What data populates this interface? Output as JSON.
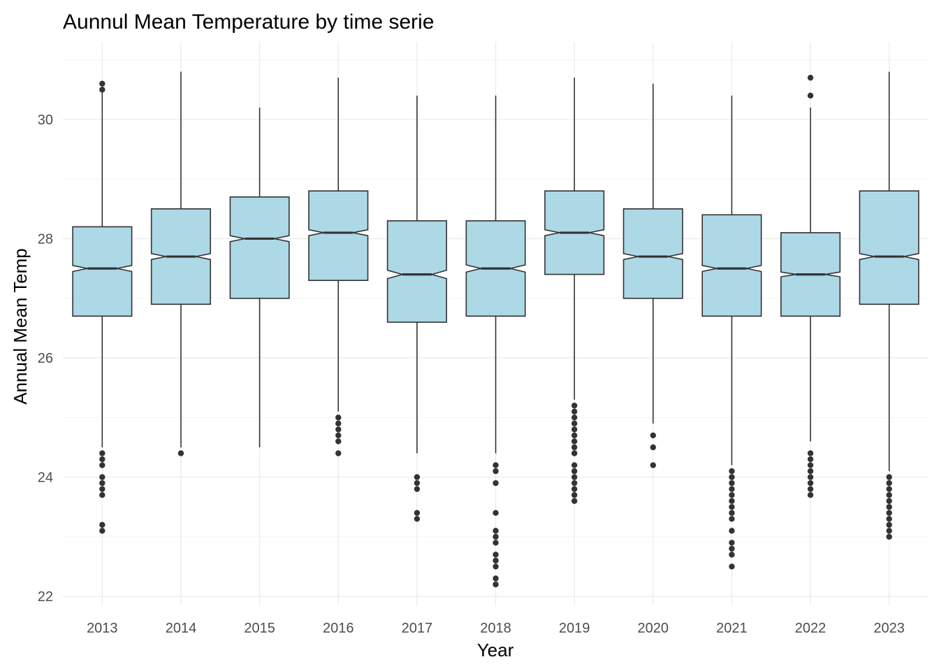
{
  "chart_data": {
    "type": "boxplot",
    "title": "Aunnul Mean Temperature by time serie",
    "xlabel": "Year",
    "ylabel": "Annual Mean Temp",
    "ylim": [
      21.85,
      31.3
    ],
    "y_ticks": [
      22,
      24,
      26,
      28,
      30
    ],
    "y_tick_labels": [
      "22",
      "24",
      "26",
      "28",
      "30"
    ],
    "grid": true,
    "notched": true,
    "box_fill": "#add8e6",
    "line_color": "#333333",
    "categories": [
      "2013",
      "2014",
      "2015",
      "2016",
      "2017",
      "2018",
      "2019",
      "2020",
      "2021",
      "2022",
      "2023"
    ],
    "boxes": [
      {
        "q1": 26.7,
        "median": 27.5,
        "q3": 28.2,
        "notch_low": 27.45,
        "notch_high": 27.55,
        "whisker_low": 24.5,
        "whisker_high": 30.5,
        "outliers": [
          30.6,
          30.5,
          24.4,
          24.3,
          24.2,
          24.0,
          23.9,
          23.8,
          23.7,
          23.2,
          23.1
        ]
      },
      {
        "q1": 26.9,
        "median": 27.7,
        "q3": 28.5,
        "notch_low": 27.65,
        "notch_high": 27.75,
        "whisker_low": 24.5,
        "whisker_high": 30.8,
        "outliers": [
          24.4
        ]
      },
      {
        "q1": 27.0,
        "median": 28.0,
        "q3": 28.7,
        "notch_low": 27.95,
        "notch_high": 28.05,
        "whisker_low": 24.5,
        "whisker_high": 30.2,
        "outliers": []
      },
      {
        "q1": 27.3,
        "median": 28.1,
        "q3": 28.8,
        "notch_low": 28.05,
        "notch_high": 28.15,
        "whisker_low": 25.1,
        "whisker_high": 30.7,
        "outliers": [
          25.0,
          24.9,
          24.8,
          24.7,
          24.6,
          24.4
        ]
      },
      {
        "q1": 26.6,
        "median": 27.4,
        "q3": 28.3,
        "notch_low": 27.33,
        "notch_high": 27.47,
        "whisker_low": 24.4,
        "whisker_high": 30.4,
        "outliers": [
          24.0,
          23.9,
          23.8,
          23.4,
          23.3
        ]
      },
      {
        "q1": 26.7,
        "median": 27.5,
        "q3": 28.3,
        "notch_low": 27.44,
        "notch_high": 27.56,
        "whisker_low": 24.4,
        "whisker_high": 30.4,
        "outliers": [
          24.2,
          24.1,
          23.9,
          23.4,
          23.1,
          23.0,
          22.9,
          22.7,
          22.6,
          22.5,
          22.3,
          22.2
        ]
      },
      {
        "q1": 27.4,
        "median": 28.1,
        "q3": 28.8,
        "notch_low": 28.05,
        "notch_high": 28.15,
        "whisker_low": 25.3,
        "whisker_high": 30.7,
        "outliers": [
          25.2,
          25.1,
          25.0,
          24.9,
          24.8,
          24.7,
          24.6,
          24.5,
          24.4,
          24.2,
          24.1,
          24.0,
          23.9,
          23.8,
          23.7,
          23.6
        ]
      },
      {
        "q1": 27.0,
        "median": 27.7,
        "q3": 28.5,
        "notch_low": 27.65,
        "notch_high": 27.75,
        "whisker_low": 24.9,
        "whisker_high": 30.6,
        "outliers": [
          24.7,
          24.5,
          24.2
        ]
      },
      {
        "q1": 26.7,
        "median": 27.5,
        "q3": 28.4,
        "notch_low": 27.45,
        "notch_high": 27.55,
        "whisker_low": 24.2,
        "whisker_high": 30.4,
        "outliers": [
          24.1,
          24.0,
          23.9,
          23.8,
          23.7,
          23.6,
          23.5,
          23.4,
          23.3,
          23.1,
          22.9,
          22.8,
          22.7,
          22.5
        ]
      },
      {
        "q1": 26.7,
        "median": 27.4,
        "q3": 28.1,
        "notch_low": 27.36,
        "notch_high": 27.44,
        "whisker_low": 24.6,
        "whisker_high": 30.2,
        "outliers": [
          30.7,
          30.4,
          24.4,
          24.3,
          24.2,
          24.1,
          24.0,
          23.9,
          23.8,
          23.7
        ]
      },
      {
        "q1": 26.9,
        "median": 27.7,
        "q3": 28.8,
        "notch_low": 27.65,
        "notch_high": 27.75,
        "whisker_low": 24.1,
        "whisker_high": 30.8,
        "outliers": [
          24.0,
          23.9,
          23.8,
          23.7,
          23.6,
          23.5,
          23.4,
          23.3,
          23.2,
          23.1,
          23.0
        ]
      }
    ]
  }
}
